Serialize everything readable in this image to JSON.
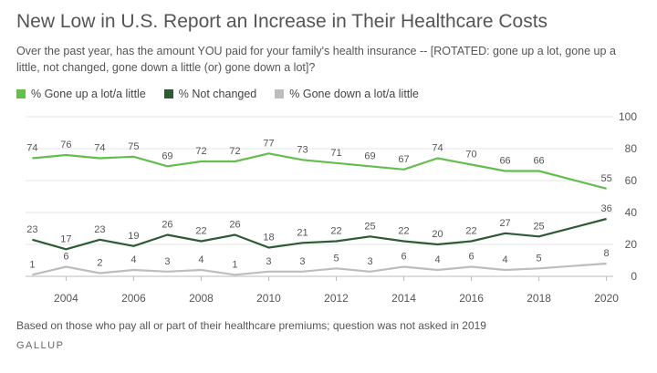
{
  "title": "New Low in U.S. Report an Increase in Their Healthcare Costs",
  "subtitle": "Over the past year, has the amount YOU paid for your family's health insurance -- [ROTATED: gone up a lot, gone up a little, not changed, gone down a little (or) gone down a lot]?",
  "note": "Based on those who pay all or part of their healthcare premiums; question was not asked in 2019",
  "source": "GALLUP",
  "chart_data": {
    "type": "line",
    "x": [
      2003,
      2004,
      2005,
      2006,
      2007,
      2008,
      2009,
      2010,
      2011,
      2012,
      2013,
      2014,
      2015,
      2016,
      2017,
      2018,
      2020
    ],
    "xticks": [
      2004,
      2006,
      2008,
      2010,
      2012,
      2014,
      2016,
      2018,
      2020
    ],
    "yticks": [
      0,
      20,
      40,
      60,
      80,
      100
    ],
    "xlim": [
      2002.8,
      2020.2
    ],
    "ylim": [
      0,
      100
    ],
    "grid": true,
    "legend_position": "top-left",
    "series": [
      {
        "name": "% Gone up a lot/a little",
        "color": "#63be4f",
        "values": [
          74,
          76,
          74,
          75,
          69,
          72,
          72,
          77,
          73,
          71,
          69,
          67,
          74,
          70,
          66,
          66,
          55
        ]
      },
      {
        "name": "% Not changed",
        "color": "#2e5b36",
        "values": [
          23,
          17,
          23,
          19,
          26,
          22,
          26,
          18,
          21,
          22,
          25,
          22,
          20,
          22,
          27,
          25,
          36
        ]
      },
      {
        "name": "% Gone down a lot/a little",
        "color": "#bdbdbd",
        "values": [
          1,
          6,
          2,
          4,
          3,
          4,
          1,
          3,
          3,
          5,
          3,
          6,
          4,
          6,
          4,
          5,
          8
        ]
      }
    ]
  }
}
